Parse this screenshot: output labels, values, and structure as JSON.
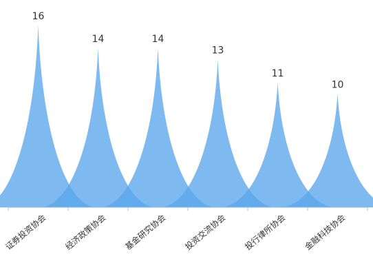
{
  "chart_data": {
    "type": "area",
    "style": "pictorial-spike",
    "categories": [
      "证券投资协会",
      "经济政策协会",
      "基金研究协会",
      "投资交流协会",
      "投行律所协会",
      "金融科技协会"
    ],
    "values": [
      16,
      14,
      14,
      13,
      11,
      10
    ],
    "ylim": [
      0,
      16
    ],
    "grid": false,
    "legend": "none",
    "colors": {
      "fill": "#5aa7ec",
      "axis": "#bfbfbf",
      "text": "#333333"
    }
  }
}
